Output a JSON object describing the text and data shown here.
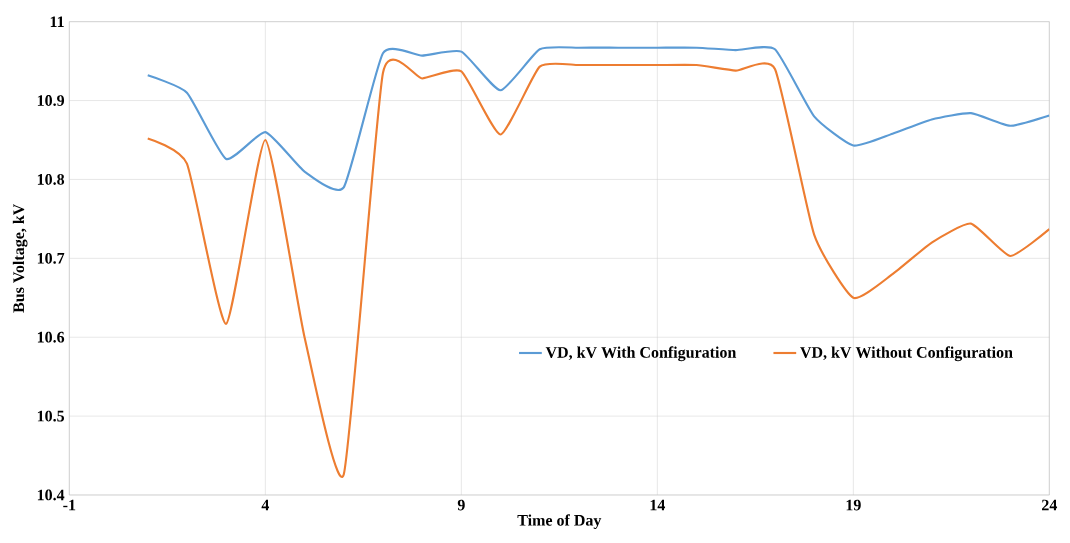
{
  "chart_data": {
    "type": "line",
    "xlabel": "Time of Day",
    "ylabel": "Bus Voltage, kV",
    "x": [
      1,
      2,
      3,
      4,
      5,
      6,
      7,
      8,
      9,
      10,
      11,
      12,
      13,
      14,
      15,
      16,
      17,
      18,
      19,
      20,
      21,
      22,
      23,
      24
    ],
    "series": [
      {
        "name": "VD, kV With Configuration",
        "color": "#5b9bd5",
        "values": [
          10.932,
          10.91,
          10.826,
          10.86,
          10.81,
          10.79,
          10.96,
          10.957,
          10.962,
          10.913,
          10.965,
          10.967,
          10.967,
          10.967,
          10.967,
          10.964,
          10.965,
          10.88,
          10.843,
          10.858,
          10.876,
          10.884,
          10.868,
          10.881
        ]
      },
      {
        "name": "VD, kV Without Configuration",
        "color": "#ed7d31",
        "values": [
          10.852,
          10.82,
          10.617,
          10.85,
          10.6,
          10.426,
          10.935,
          10.928,
          10.937,
          10.857,
          10.943,
          10.945,
          10.945,
          10.945,
          10.945,
          10.938,
          10.94,
          10.73,
          10.65,
          10.68,
          10.72,
          10.744,
          10.703,
          10.737
        ]
      }
    ],
    "xlim": [
      -1,
      24
    ],
    "ylim": [
      10.4,
      11
    ],
    "xticks": [
      -1,
      4,
      9,
      14,
      19,
      24
    ],
    "yticks": [
      10.4,
      10.5,
      10.6,
      10.7,
      10.8,
      10.9,
      11
    ],
    "grid": true,
    "legend": "right",
    "marker": "none",
    "line_style": "solid"
  }
}
